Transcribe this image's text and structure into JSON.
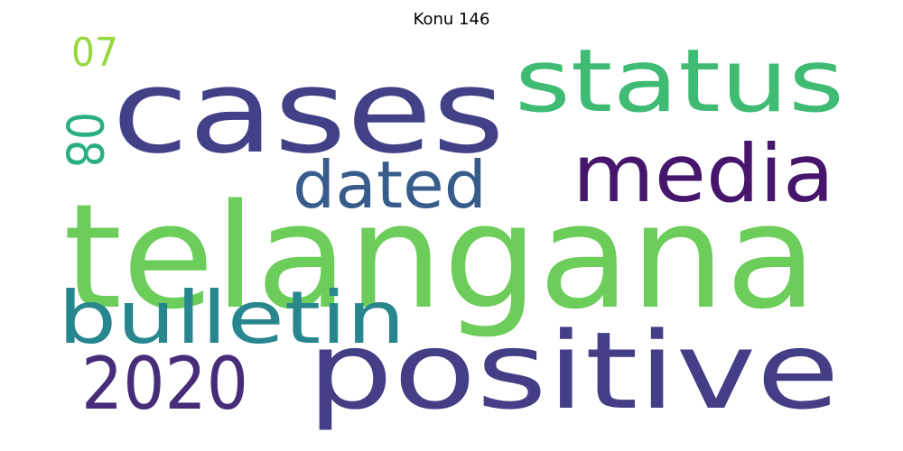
{
  "title": "Konu 146",
  "words": [
    {
      "text": "telangana",
      "color": "#6ccd5a"
    },
    {
      "text": "cases",
      "color": "#424086"
    },
    {
      "text": "positive",
      "color": "#433e85"
    },
    {
      "text": "status",
      "color": "#3fbb74"
    },
    {
      "text": "media",
      "color": "#45166c"
    },
    {
      "text": "bulletin",
      "color": "#27868e"
    },
    {
      "text": "2020",
      "color": "#472c7a"
    },
    {
      "text": "dated",
      "color": "#375c8c"
    },
    {
      "text": "08",
      "color": "#29af7f"
    },
    {
      "text": "07",
      "color": "#95d841"
    }
  ]
}
